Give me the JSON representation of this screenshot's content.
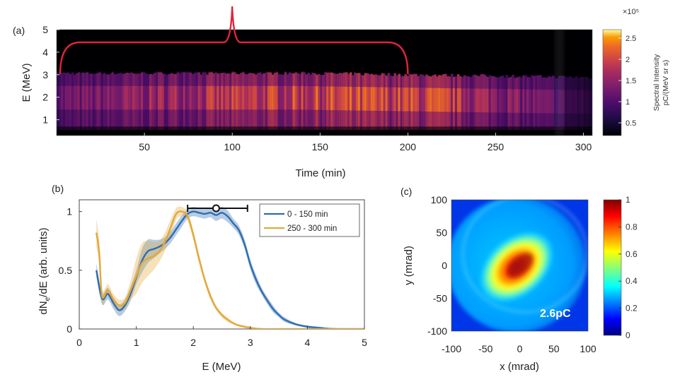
{
  "chart_data": [
    {
      "panel": "(a)",
      "type": "heatmap",
      "xlabel": "Time (min)",
      "ylabel": "E (MeV)",
      "xlim": [
        0,
        305
      ],
      "ylim": [
        0.3,
        5
      ],
      "xticks": [
        50,
        100,
        150,
        200,
        250,
        300
      ],
      "yticks": [
        1,
        2,
        3,
        4,
        5
      ],
      "colorbar": {
        "label_line1": "Spectral Intensity",
        "label_line2": "pC/(MeV sr s)",
        "multiplier": "×10⁵",
        "ticks": [
          "0.5",
          "1",
          "1.5",
          "2",
          "2.5"
        ],
        "range": [
          0.2,
          2.7
        ],
        "colormap": "inferno"
      },
      "annotation": {
        "type": "bracket",
        "x_from": 0,
        "x_to": 200,
        "x_peak": 100
      }
    },
    {
      "panel": "(b)",
      "type": "line",
      "xlabel": "E (MeV)",
      "ylabel": "dN",
      "ylabel_sub": "e",
      "ylabel_suffix": "/dE (arb. units)",
      "xlim": [
        0,
        5
      ],
      "ylim": [
        0,
        1.1
      ],
      "xticks": [
        "0",
        "1",
        "2",
        "3",
        "4",
        "5"
      ],
      "yticks": [
        "0",
        "0.5",
        "1"
      ],
      "legend_position": "top-right",
      "errorbar": {
        "center": 2.4,
        "from": 1.9,
        "to": 2.95,
        "y": 1.12
      },
      "series": [
        {
          "name": "0 - 150 min",
          "color": "#2f6db2",
          "x": [
            0.3,
            0.4,
            0.5,
            0.6,
            0.7,
            0.8,
            0.9,
            1.0,
            1.1,
            1.2,
            1.3,
            1.4,
            1.5,
            1.6,
            1.7,
            1.8,
            1.9,
            2.0,
            2.1,
            2.2,
            2.3,
            2.4,
            2.5,
            2.6,
            2.7,
            2.8,
            2.9,
            3.0,
            3.1,
            3.2,
            3.3,
            3.4,
            3.5,
            3.6,
            3.8,
            4.0,
            4.2,
            4.5,
            5.0
          ],
          "y": [
            0.5,
            0.26,
            0.3,
            0.22,
            0.16,
            0.2,
            0.3,
            0.44,
            0.58,
            0.66,
            0.68,
            0.7,
            0.73,
            0.78,
            0.85,
            0.92,
            0.98,
            1.0,
            0.99,
            0.98,
            0.99,
            0.97,
            0.99,
            0.96,
            0.9,
            0.84,
            0.72,
            0.55,
            0.42,
            0.32,
            0.24,
            0.17,
            0.12,
            0.08,
            0.04,
            0.02,
            0.01,
            0.0,
            0.0
          ],
          "band": [
            0.06,
            0.05,
            0.05,
            0.05,
            0.05,
            0.05,
            0.06,
            0.06,
            0.1,
            0.1,
            0.08,
            0.06,
            0.05,
            0.05,
            0.05,
            0.05,
            0.04,
            0.04,
            0.04,
            0.04,
            0.04,
            0.05,
            0.05,
            0.05,
            0.04,
            0.04,
            0.04,
            0.04,
            0.04,
            0.03,
            0.03,
            0.03,
            0.02,
            0.02,
            0.01,
            0.01,
            0.01,
            0.0,
            0.0
          ]
        },
        {
          "name": "250 - 300 min",
          "color": "#e3a83a",
          "x": [
            0.3,
            0.35,
            0.4,
            0.5,
            0.6,
            0.7,
            0.8,
            0.9,
            1.0,
            1.1,
            1.2,
            1.3,
            1.4,
            1.5,
            1.6,
            1.7,
            1.8,
            1.9,
            2.0,
            2.1,
            2.2,
            2.3,
            2.4,
            2.5,
            2.6,
            2.7,
            2.8,
            3.0,
            3.2,
            3.5,
            5.0
          ],
          "y": [
            0.82,
            0.65,
            0.28,
            0.33,
            0.25,
            0.2,
            0.22,
            0.33,
            0.45,
            0.56,
            0.6,
            0.62,
            0.66,
            0.74,
            0.86,
            0.98,
            1.0,
            0.96,
            0.8,
            0.6,
            0.42,
            0.28,
            0.18,
            0.12,
            0.08,
            0.05,
            0.03,
            0.01,
            0.0,
            0.0,
            0.0
          ],
          "band": [
            0.12,
            0.1,
            0.06,
            0.05,
            0.05,
            0.05,
            0.05,
            0.08,
            0.15,
            0.17,
            0.15,
            0.12,
            0.09,
            0.08,
            0.07,
            0.05,
            0.04,
            0.04,
            0.04,
            0.04,
            0.03,
            0.03,
            0.02,
            0.02,
            0.02,
            0.01,
            0.01,
            0.01,
            0.0,
            0.0,
            0.0
          ]
        }
      ]
    },
    {
      "panel": "(c)",
      "type": "heatmap",
      "xlabel": "x (mrad)",
      "ylabel": "y (mrad)",
      "xlim": [
        -100,
        100
      ],
      "ylim": [
        -100,
        100
      ],
      "xticks": [
        "-100",
        "-50",
        "0",
        "50",
        "100"
      ],
      "yticks": [
        "100",
        "50",
        "0",
        "-50",
        "-100"
      ],
      "annotation_text": "2.6pC",
      "colorbar": {
        "ticks": [
          "0",
          "0.2",
          "0.4",
          "0.6",
          "0.8",
          "1"
        ],
        "range": [
          0,
          1
        ],
        "colormap": "jet"
      }
    }
  ]
}
